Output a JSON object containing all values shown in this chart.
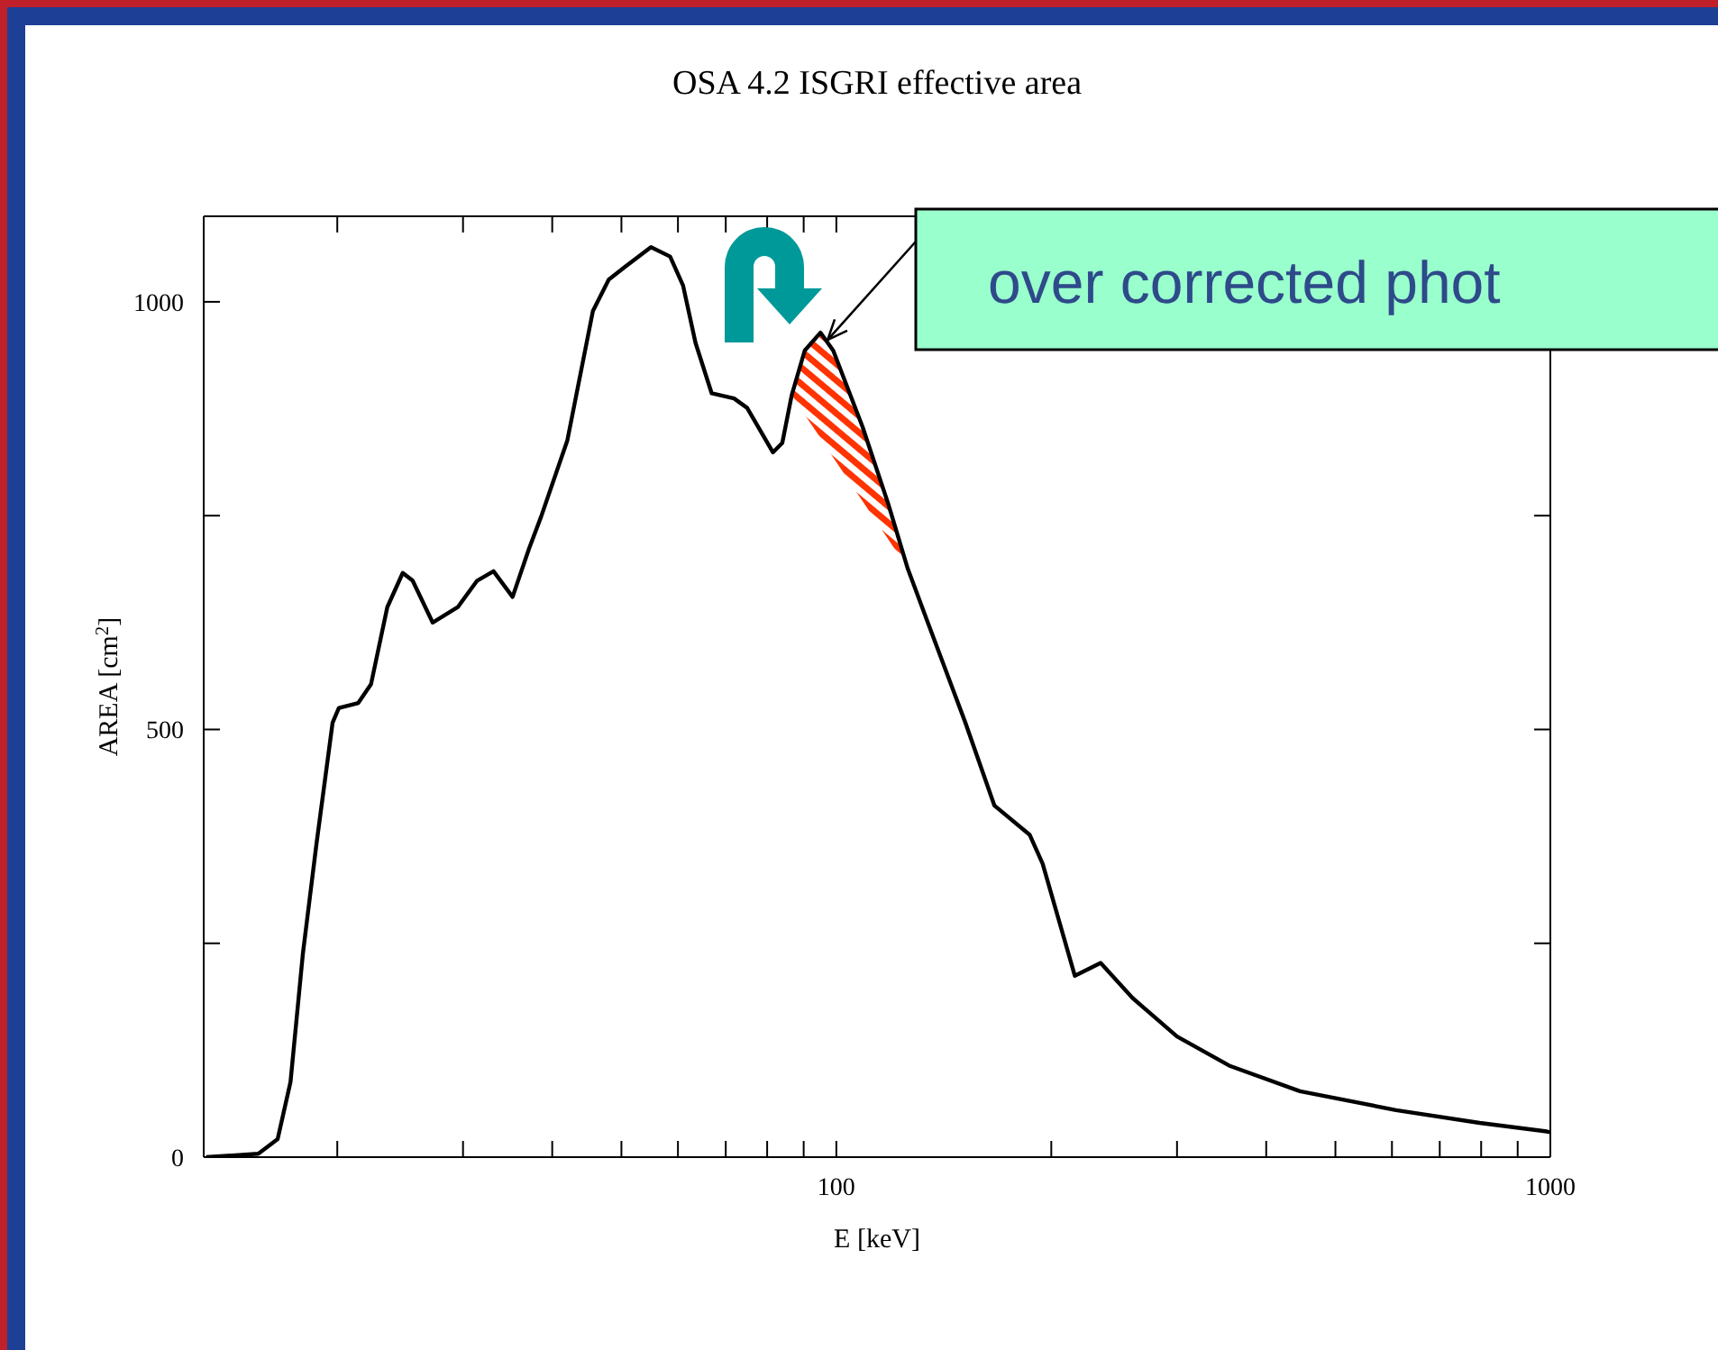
{
  "chart_data": {
    "type": "line",
    "title": "OSA 4.2 ISGRI effective area",
    "xlabel": "E [keV]",
    "ylabel": "AREA [cm$^{2}$]",
    "log": "x",
    "marker": "none",
    "line_style": "solid",
    "xlim": [
      13,
      1000
    ],
    "xticks": [
      {
        "value": 20,
        "label": null
      },
      {
        "value": 30,
        "label": null
      },
      {
        "value": 40,
        "label": null
      },
      {
        "value": 50,
        "label": null
      },
      {
        "value": 60,
        "label": null
      },
      {
        "value": 70,
        "label": null
      },
      {
        "value": 80,
        "label": null
      },
      {
        "value": 90,
        "label": null
      },
      100,
      {
        "value": 200,
        "label": null
      },
      {
        "value": 300,
        "label": null
      },
      {
        "value": 400,
        "label": null
      },
      {
        "value": 500,
        "label": null
      },
      {
        "value": 600,
        "label": null
      },
      {
        "value": 700,
        "label": null
      },
      {
        "value": 800,
        "label": null
      },
      {
        "value": 900,
        "label": null
      },
      1000
    ],
    "ylim": [
      0,
      1100
    ],
    "yticks": [
      0,
      {
        "value": 250,
        "label": null
      },
      500,
      {
        "value": 750,
        "label": null
      },
      1000
    ],
    "annotations": [
      {
        "text": "over corrected phot",
        "x": 95,
        "y": 964
      }
    ],
    "series": [
      {
        "color": "#000000",
        "lower": [
          null,
          null,
          null,
          null,
          null,
          null,
          null,
          null,
          null,
          null,
          null,
          null,
          null,
          null,
          null,
          null,
          null,
          null,
          null,
          null,
          null,
          null,
          null,
          null,
          null,
          null,
          null,
          null,
          null,
          null,
          null,
          null,
          null,
          891,
          868,
          841,
          818,
          767,
          722,
          688,
          null,
          null,
          null,
          null,
          null,
          null,
          null,
          null,
          null,
          null,
          null,
          null,
          null,
          null,
          null
        ],
        "upper": [
          null,
          null,
          null,
          null,
          null,
          null,
          null,
          null,
          null,
          null,
          null,
          null,
          null,
          null,
          null,
          null,
          null,
          null,
          null,
          null,
          null,
          null,
          null,
          null,
          null,
          null,
          null,
          null,
          null,
          null,
          null,
          null,
          null,
          891,
          943,
          964,
          943,
          854,
          763,
          688,
          null,
          null,
          null,
          null,
          null,
          null,
          null,
          null,
          null,
          null,
          null,
          null,
          null,
          null,
          null
        ],
        "x": [
          13.1,
          15.5,
          16.5,
          17.2,
          17.9,
          18.7,
          19.7,
          20.1,
          21.4,
          22.3,
          23.5,
          24.7,
          25.5,
          27.2,
          29.5,
          31.4,
          33.1,
          35.2,
          37.1,
          38.6,
          42,
          45.6,
          48,
          50.6,
          55,
          58.5,
          61,
          63.5,
          66.9,
          71.9,
          75,
          81.5,
          84,
          86.6,
          90.3,
          95,
          99,
          108.8,
          118.3,
          125.9,
          133.9,
          151.6,
          166.5,
          186.5,
          194.5,
          215.8,
          234.5,
          260,
          300,
          355,
          446,
          608,
          796,
          989,
          1000
        ],
        "values": [
          0,
          4,
          21,
          88,
          238,
          366,
          508,
          525,
          531,
          553,
          643,
          683,
          674,
          625,
          643,
          674,
          685,
          655,
          711,
          749,
          838,
          989,
          1026,
          1041,
          1064,
          1053,
          1019,
          952,
          893,
          887,
          876,
          824,
          835,
          891,
          943,
          964,
          943,
          854,
          763,
          688,
          628,
          508,
          411,
          377,
          343,
          212,
          227,
          186,
          141,
          107,
          77,
          55,
          40,
          30,
          29
        ]
      }
    ]
  }
}
